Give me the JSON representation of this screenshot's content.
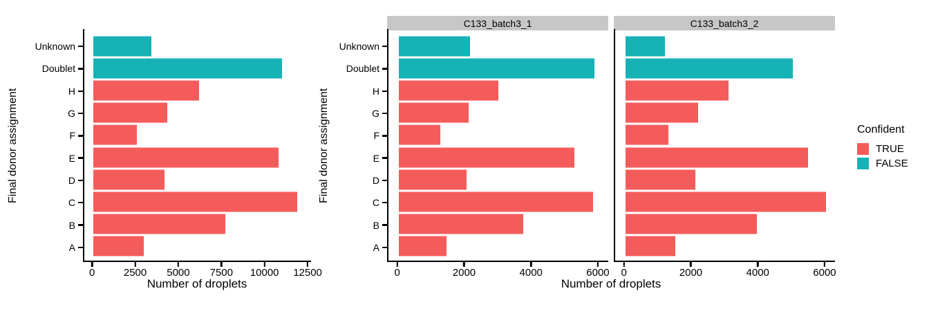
{
  "chart_data": [
    {
      "type": "bar",
      "orientation": "horizontal",
      "panel_title": "",
      "xlabel": "Number of droplets",
      "ylabel": "Final donor assignment",
      "categories_order": "top to bottom",
      "categories": [
        "Unknown",
        "Doublet",
        "H",
        "G",
        "F",
        "E",
        "D",
        "C",
        "B",
        "A"
      ],
      "values": [
        3400,
        11000,
        6150,
        4300,
        2550,
        10800,
        4150,
        11900,
        7700,
        2950
      ],
      "confident": [
        "FALSE",
        "FALSE",
        "TRUE",
        "TRUE",
        "TRUE",
        "TRUE",
        "TRUE",
        "TRUE",
        "TRUE",
        "TRUE"
      ],
      "x_ticks": [
        0,
        2500,
        5000,
        7500,
        10000,
        12500
      ],
      "xlim": [
        0,
        12500
      ],
      "grid": false
    },
    {
      "type": "bar",
      "orientation": "horizontal",
      "panel_title": "C133_batch3_1",
      "xlabel": "Number of droplets",
      "ylabel": "Final donor assignment",
      "categories_order": "top to bottom",
      "categories": [
        "Unknown",
        "Doublet",
        "H",
        "G",
        "F",
        "E",
        "D",
        "C",
        "B",
        "A"
      ],
      "values": [
        2150,
        5900,
        3000,
        2100,
        1250,
        5300,
        2050,
        5850,
        3750,
        1450
      ],
      "confident": [
        "FALSE",
        "FALSE",
        "TRUE",
        "TRUE",
        "TRUE",
        "TRUE",
        "TRUE",
        "TRUE",
        "TRUE",
        "TRUE"
      ],
      "x_ticks": [
        0,
        2000,
        4000,
        6000
      ],
      "xlim": [
        0,
        6000
      ],
      "grid": false
    },
    {
      "type": "bar",
      "orientation": "horizontal",
      "panel_title": "C133_batch3_2",
      "xlabel": "Number of droplets",
      "ylabel": "Final donor assignment",
      "categories_order": "top to bottom",
      "categories": [
        "Unknown",
        "Doublet",
        "H",
        "G",
        "F",
        "E",
        "D",
        "C",
        "B",
        "A"
      ],
      "values": [
        1200,
        5050,
        3100,
        2200,
        1300,
        5500,
        2100,
        6050,
        3950,
        1500
      ],
      "confident": [
        "FALSE",
        "FALSE",
        "TRUE",
        "TRUE",
        "TRUE",
        "TRUE",
        "TRUE",
        "TRUE",
        "TRUE",
        "TRUE"
      ],
      "x_ticks": [
        0,
        2000,
        4000,
        6000
      ],
      "xlim": [
        0,
        6000
      ],
      "grid": false
    }
  ],
  "legend": {
    "title": "Confident",
    "position": "right",
    "entries": [
      {
        "label": "TRUE",
        "color": "#F45C5B"
      },
      {
        "label": "FALSE",
        "color": "#16B2B6"
      }
    ]
  },
  "styles": {
    "strip_background": "#C7C7C7",
    "axis_color": "#000000",
    "background": "#FFFFFF"
  }
}
